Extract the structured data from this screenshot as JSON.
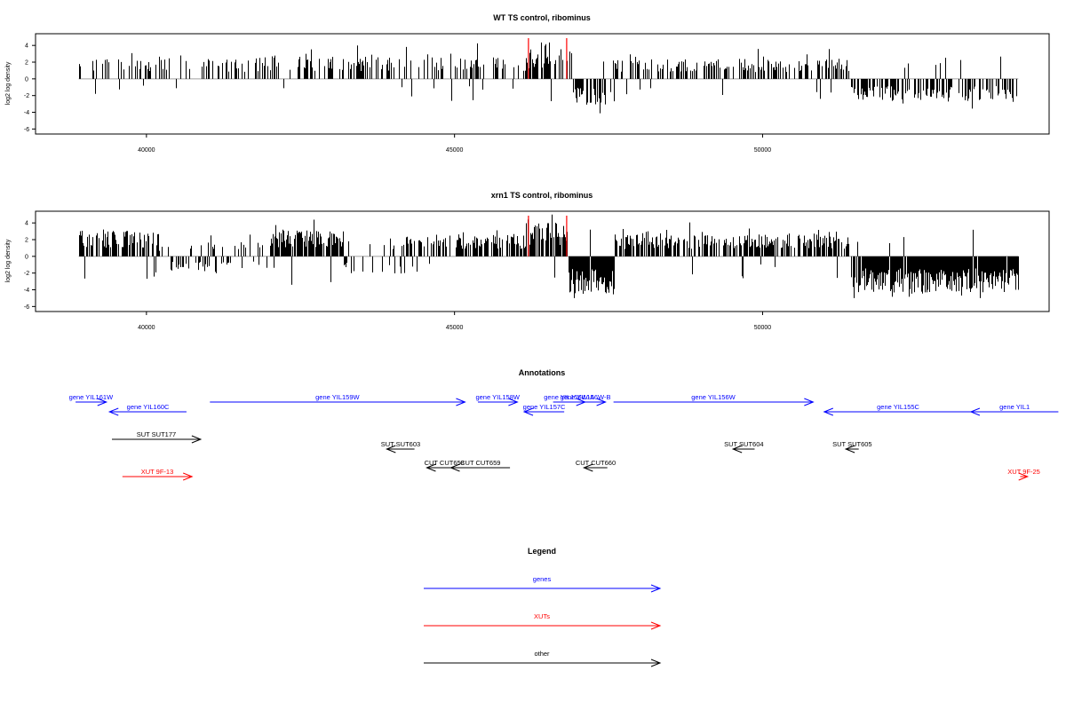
{
  "chart_data": [
    {
      "type": "bar",
      "title": "WT TS control, ribominus",
      "ylabel": "log2 log density",
      "xlabel": "",
      "xlim": [
        38200,
        54650
      ],
      "ylim": [
        -6.6,
        5.4
      ],
      "xticks": [
        40000,
        45000,
        50000
      ],
      "xtick_labels": [
        "40000",
        "45000",
        "50000"
      ],
      "yticks": [
        4,
        2,
        0,
        -2,
        -4,
        -6
      ],
      "ytick_labels": [
        "4",
        "2",
        "0",
        "-2",
        "-4",
        "-6"
      ],
      "data_range": [
        38900,
        54150
      ],
      "markers": [
        46200,
        46820
      ],
      "marker_color": "#ff0000",
      "segments": [
        {
          "from": 38900,
          "to": 41800,
          "sign": 1,
          "density": 0.25,
          "mag": 2.0,
          "negProb": 0.12
        },
        {
          "from": 41800,
          "to": 46150,
          "sign": 1,
          "density": 0.35,
          "mag": 2.2,
          "negProb": 0.05
        },
        {
          "from": 46150,
          "to": 46900,
          "sign": 1,
          "density": 0.6,
          "mag": 3.0,
          "negProb": 0.05
        },
        {
          "from": 46900,
          "to": 47600,
          "sign": -1,
          "density": 0.6,
          "mag": 2.6,
          "negProb": 0.1
        },
        {
          "from": 47600,
          "to": 51400,
          "sign": 1,
          "density": 0.45,
          "mag": 2.0,
          "negProb": 0.06
        },
        {
          "from": 51400,
          "to": 54150,
          "sign": -1,
          "density": 0.55,
          "mag": 2.2,
          "negProb": 0.05
        }
      ],
      "seed": 7
    },
    {
      "type": "bar",
      "title": "xrn1 TS control, ribominus",
      "ylabel": "log2 log density",
      "xlabel": "",
      "xlim": [
        38200,
        54650
      ],
      "ylim": [
        -6.6,
        5.4
      ],
      "xticks": [
        40000,
        45000,
        50000
      ],
      "xtick_labels": [
        "40000",
        "45000",
        "50000"
      ],
      "yticks": [
        4,
        2,
        0,
        -2,
        -4,
        -6
      ],
      "ytick_labels": [
        "4",
        "2",
        "0",
        "-2",
        "-4",
        "-6"
      ],
      "data_range": [
        38900,
        54150
      ],
      "markers": [
        46200,
        46820
      ],
      "marker_color": "#ff0000",
      "segments": [
        {
          "from": 38900,
          "to": 40200,
          "sign": 1,
          "density": 0.7,
          "mag": 2.6,
          "negProb": 0.1
        },
        {
          "from": 40200,
          "to": 41400,
          "sign": -1,
          "density": 0.5,
          "mag": 1.6,
          "negProb": 0.3
        },
        {
          "from": 41400,
          "to": 42000,
          "sign": 1,
          "density": 0.4,
          "mag": 1.5,
          "negProb": 0.2
        },
        {
          "from": 42000,
          "to": 43200,
          "sign": 1,
          "density": 0.85,
          "mag": 2.6,
          "negProb": 0.05
        },
        {
          "from": 43200,
          "to": 44200,
          "sign": -1,
          "density": 0.4,
          "mag": 1.8,
          "negProb": 0.4
        },
        {
          "from": 44200,
          "to": 46150,
          "sign": 1,
          "density": 0.6,
          "mag": 2.2,
          "negProb": 0.05
        },
        {
          "from": 46150,
          "to": 46850,
          "sign": 1,
          "density": 0.9,
          "mag": 3.4,
          "negProb": 0.03
        },
        {
          "from": 46850,
          "to": 47600,
          "sign": -1,
          "density": 0.95,
          "mag": 3.8,
          "negProb": 0.03
        },
        {
          "from": 47600,
          "to": 51450,
          "sign": 1,
          "density": 0.65,
          "mag": 2.2,
          "negProb": 0.04
        },
        {
          "from": 51450,
          "to": 54150,
          "sign": -1,
          "density": 0.97,
          "mag": 3.6,
          "negProb": 0.03
        }
      ],
      "seed": 13
    }
  ],
  "annotations": {
    "title": "Annotations",
    "xlim": [
      38200,
      54650
    ],
    "features": [
      {
        "label": "gene YIL161W",
        "kind": "gene",
        "color": "#0000ff",
        "start": 38850,
        "end": 39350,
        "dir": "right",
        "row": 0
      },
      {
        "label": "gene YIL160C",
        "kind": "gene",
        "color": "#0000ff",
        "start": 39400,
        "end": 40650,
        "dir": "left",
        "row": 1
      },
      {
        "label": "gene YIL159W",
        "kind": "gene",
        "color": "#0000ff",
        "start": 41030,
        "end": 45170,
        "dir": "right",
        "row": 0
      },
      {
        "label": "gene YIL158W",
        "kind": "gene",
        "color": "#0000ff",
        "start": 45380,
        "end": 46020,
        "dir": "right",
        "row": 0
      },
      {
        "label": "gene YIL157C",
        "kind": "gene",
        "color": "#0000ff",
        "start": 46130,
        "end": 46780,
        "dir": "left",
        "row": 1
      },
      {
        "label": "gene YIL156W-A",
        "kind": "gene",
        "color": "#0000ff",
        "start": 46600,
        "end": 47120,
        "dir": "right",
        "row": 0
      },
      {
        "label": "gene YIL156W-B",
        "kind": "gene",
        "color": "#0000ff",
        "start": 46800,
        "end": 47450,
        "dir": "right",
        "row": 0
      },
      {
        "label": "gene YIL156W",
        "kind": "gene",
        "color": "#0000ff",
        "start": 47580,
        "end": 50820,
        "dir": "right",
        "row": 0
      },
      {
        "label": "gene YIL155C",
        "kind": "gene",
        "color": "#0000ff",
        "start": 51000,
        "end": 53400,
        "dir": "left",
        "row": 1
      },
      {
        "label": "gene YIL1",
        "kind": "gene",
        "color": "#0000ff",
        "start": 53380,
        "end": 54800,
        "dir": "left",
        "row": 1
      },
      {
        "label": "SUT SUT177",
        "kind": "other",
        "color": "#000000",
        "start": 39440,
        "end": 40880,
        "dir": "right",
        "row": 2
      },
      {
        "label": "SUT SUT603",
        "kind": "other",
        "color": "#000000",
        "start": 43900,
        "end": 44350,
        "dir": "left",
        "row": 3
      },
      {
        "label": "CUT CUT658",
        "kind": "other",
        "color": "#000000",
        "start": 44550,
        "end": 45120,
        "dir": "left",
        "row": 4
      },
      {
        "label": "CUT CUT659",
        "kind": "other",
        "color": "#000000",
        "start": 44940,
        "end": 45900,
        "dir": "left",
        "row": 4
      },
      {
        "label": "CUT CUT660",
        "kind": "other",
        "color": "#000000",
        "start": 47100,
        "end": 47480,
        "dir": "left",
        "row": 4
      },
      {
        "label": "SUT SUT604",
        "kind": "other",
        "color": "#000000",
        "start": 49520,
        "end": 49870,
        "dir": "left",
        "row": 3
      },
      {
        "label": "SUT SUT605",
        "kind": "other",
        "color": "#000000",
        "start": 51350,
        "end": 51560,
        "dir": "left",
        "row": 3
      },
      {
        "label": "XUT 9F-13",
        "kind": "xut",
        "color": "#ff0000",
        "start": 39610,
        "end": 40740,
        "dir": "right",
        "row": 5
      },
      {
        "label": "XUT 9F-25",
        "kind": "xut",
        "color": "#ff0000",
        "start": 54180,
        "end": 54300,
        "dir": "right",
        "row": 5
      }
    ]
  },
  "legend": {
    "title": "Legend",
    "items": [
      {
        "label": "genes",
        "color": "#0000ff"
      },
      {
        "label": "XUTs",
        "color": "#ff0000"
      },
      {
        "label": "other",
        "color": "#000000"
      }
    ]
  }
}
